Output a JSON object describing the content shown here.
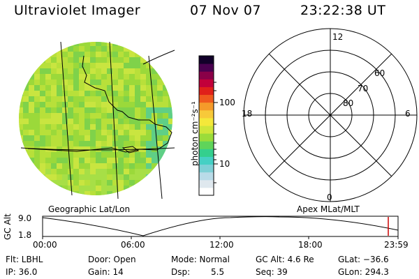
{
  "header": {
    "instrument": "Ultraviolet Imager",
    "date": "07 Nov 07",
    "time": "23:22:38 UT"
  },
  "geo_panel": {
    "label": "Geographic Lat/Lon",
    "image_colors": [
      "#9bd93a",
      "#b8e03a",
      "#7fd24a",
      "#c9e540",
      "#5fcf86",
      "#a7df46"
    ]
  },
  "colorbar": {
    "unit_label": "photon cm⁻²s⁻¹",
    "tick_100": "100",
    "tick_10": "10",
    "colors": [
      "#ffffff",
      "#dfe8ee",
      "#b9dbe8",
      "#7fd0d6",
      "#45d0c4",
      "#34cf8e",
      "#5fd45a",
      "#9bdc3a",
      "#cfe63a",
      "#f4e83a",
      "#f7c93a",
      "#f59a2a",
      "#ef5a1e",
      "#e0201a",
      "#c2003a",
      "#8a0048",
      "#4a0050",
      "#12002a"
    ]
  },
  "polar_panel": {
    "label": "Apex MLat/MLT",
    "mlt_top": "12",
    "mlt_left": "18",
    "mlt_right": "6",
    "mlt_bottom": "0",
    "lat_60": "60",
    "lat_70": "70",
    "lat_80": "80"
  },
  "altitude_plot": {
    "axis_label": "GC Alt",
    "y_top": "9.0",
    "y_bottom": "1.8",
    "x_ticks": [
      "00:00",
      "06:00",
      "12:00",
      "18:00",
      "23:59"
    ],
    "marker_color": "#cc0000"
  },
  "info": {
    "flt": "Flt: LBHL",
    "ip": "IP: 36.0",
    "door": "Door: Open",
    "gain": "Gain: 14",
    "mode": "Mode: Normal",
    "dsp_label": "Dsp:",
    "dsp_value": "5.5",
    "gc_alt": "GC Alt: 4.6 Re",
    "seq": "Seq: 39",
    "glat": "GLat: −36.6",
    "glon": "GLon: 294.3"
  }
}
